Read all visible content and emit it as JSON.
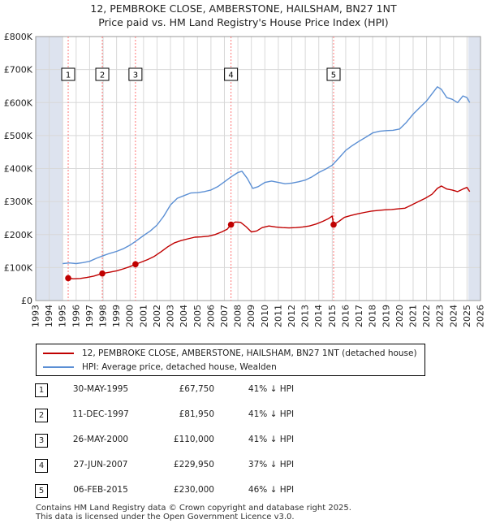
{
  "title": {
    "line1": "12, PEMBROKE CLOSE, AMBERSTONE, HAILSHAM, BN27 1NT",
    "line2": "Price paid vs. HM Land Registry's House Price Index (HPI)"
  },
  "colors": {
    "property": "#c00000",
    "hpi": "#5b8fd4",
    "shade": "#dde3ef",
    "grid": "#d8d8d8",
    "vline": "#ff7777"
  },
  "chart_data": {
    "type": "line",
    "title": "Price paid vs. HM Land Registry's House Price Index (HPI)",
    "xlabel": "",
    "ylabel": "",
    "xlim": [
      1993,
      2026
    ],
    "ylim": [
      0,
      800000
    ],
    "x_ticks": [
      1993,
      1994,
      1995,
      1996,
      1997,
      1998,
      1999,
      2000,
      2001,
      2002,
      2003,
      2004,
      2005,
      2006,
      2007,
      2008,
      2009,
      2010,
      2011,
      2012,
      2013,
      2014,
      2015,
      2016,
      2017,
      2018,
      2019,
      2020,
      2021,
      2022,
      2023,
      2024,
      2025,
      2026
    ],
    "y_ticks": [
      {
        "value": 0,
        "label": "£0"
      },
      {
        "value": 100000,
        "label": "£100K"
      },
      {
        "value": 200000,
        "label": "£200K"
      },
      {
        "value": 300000,
        "label": "£300K"
      },
      {
        "value": 400000,
        "label": "£400K"
      },
      {
        "value": 500000,
        "label": "£500K"
      },
      {
        "value": 600000,
        "label": "£600K"
      },
      {
        "value": 700000,
        "label": "£700K"
      },
      {
        "value": 800000,
        "label": "£800K"
      }
    ],
    "grid": true,
    "shaded_ranges": [
      [
        1993,
        1995.0
      ],
      [
        2025.1,
        2026
      ]
    ],
    "series": [
      {
        "name": "12, PEMBROKE CLOSE, AMBERSTONE, HAILSHAM, BN27 1NT (detached house)",
        "color_key": "property",
        "points": [
          [
            1995.41,
            67750
          ],
          [
            1995.8,
            66000
          ],
          [
            1996.3,
            67000
          ],
          [
            1996.8,
            70000
          ],
          [
            1997.3,
            74000
          ],
          [
            1997.94,
            81950
          ],
          [
            1998.5,
            86000
          ],
          [
            1999.0,
            90000
          ],
          [
            1999.5,
            96000
          ],
          [
            2000.0,
            103000
          ],
          [
            2000.4,
            110000
          ],
          [
            2000.8,
            116000
          ],
          [
            2001.3,
            124000
          ],
          [
            2001.8,
            134000
          ],
          [
            2002.3,
            148000
          ],
          [
            2002.8,
            163000
          ],
          [
            2003.3,
            175000
          ],
          [
            2003.8,
            182000
          ],
          [
            2004.3,
            187000
          ],
          [
            2004.8,
            192000
          ],
          [
            2005.3,
            193000
          ],
          [
            2005.8,
            195000
          ],
          [
            2006.3,
            200000
          ],
          [
            2006.8,
            208000
          ],
          [
            2007.2,
            216000
          ],
          [
            2007.49,
            229950
          ],
          [
            2007.8,
            238000
          ],
          [
            2008.2,
            237000
          ],
          [
            2008.6,
            224000
          ],
          [
            2009.0,
            208000
          ],
          [
            2009.4,
            211000
          ],
          [
            2009.8,
            221000
          ],
          [
            2010.3,
            226000
          ],
          [
            2010.8,
            223000
          ],
          [
            2011.3,
            221000
          ],
          [
            2011.8,
            220000
          ],
          [
            2012.3,
            221000
          ],
          [
            2012.8,
            223000
          ],
          [
            2013.3,
            226000
          ],
          [
            2013.8,
            232000
          ],
          [
            2014.3,
            240000
          ],
          [
            2014.7,
            248000
          ],
          [
            2015.0,
            256000
          ],
          [
            2015.1,
            230000
          ],
          [
            2015.5,
            240000
          ],
          [
            2015.9,
            252000
          ],
          [
            2016.4,
            258000
          ],
          [
            2016.9,
            263000
          ],
          [
            2017.4,
            267000
          ],
          [
            2017.9,
            271000
          ],
          [
            2018.4,
            273000
          ],
          [
            2018.9,
            275000
          ],
          [
            2019.4,
            276000
          ],
          [
            2019.9,
            278000
          ],
          [
            2020.4,
            280000
          ],
          [
            2020.9,
            290000
          ],
          [
            2021.4,
            300000
          ],
          [
            2021.9,
            310000
          ],
          [
            2022.4,
            322000
          ],
          [
            2022.8,
            340000
          ],
          [
            2023.1,
            347000
          ],
          [
            2023.5,
            338000
          ],
          [
            2023.9,
            335000
          ],
          [
            2024.3,
            330000
          ],
          [
            2024.7,
            338000
          ],
          [
            2025.0,
            343000
          ],
          [
            2025.2,
            330000
          ]
        ]
      },
      {
        "name": "HPI: Average price, detached house, Wealden",
        "color_key": "hpi",
        "points": [
          [
            1995.0,
            112000
          ],
          [
            1995.5,
            114000
          ],
          [
            1996.0,
            112000
          ],
          [
            1996.5,
            115000
          ],
          [
            1997.0,
            119000
          ],
          [
            1997.5,
            128000
          ],
          [
            1998.0,
            136000
          ],
          [
            1998.5,
            143000
          ],
          [
            1999.0,
            149000
          ],
          [
            1999.5,
            157000
          ],
          [
            2000.0,
            168000
          ],
          [
            2000.5,
            182000
          ],
          [
            2001.0,
            197000
          ],
          [
            2001.5,
            211000
          ],
          [
            2002.0,
            229000
          ],
          [
            2002.5,
            256000
          ],
          [
            2003.0,
            290000
          ],
          [
            2003.5,
            310000
          ],
          [
            2004.0,
            318000
          ],
          [
            2004.5,
            326000
          ],
          [
            2005.0,
            327000
          ],
          [
            2005.5,
            330000
          ],
          [
            2006.0,
            335000
          ],
          [
            2006.5,
            345000
          ],
          [
            2007.0,
            360000
          ],
          [
            2007.5,
            375000
          ],
          [
            2008.0,
            388000
          ],
          [
            2008.3,
            392000
          ],
          [
            2008.7,
            370000
          ],
          [
            2009.1,
            340000
          ],
          [
            2009.5,
            345000
          ],
          [
            2010.0,
            358000
          ],
          [
            2010.5,
            362000
          ],
          [
            2011.0,
            358000
          ],
          [
            2011.5,
            354000
          ],
          [
            2012.0,
            356000
          ],
          [
            2012.5,
            360000
          ],
          [
            2013.0,
            365000
          ],
          [
            2013.5,
            375000
          ],
          [
            2014.0,
            388000
          ],
          [
            2014.5,
            398000
          ],
          [
            2015.0,
            410000
          ],
          [
            2015.5,
            432000
          ],
          [
            2016.0,
            455000
          ],
          [
            2016.5,
            470000
          ],
          [
            2017.0,
            483000
          ],
          [
            2017.5,
            495000
          ],
          [
            2018.0,
            508000
          ],
          [
            2018.5,
            513000
          ],
          [
            2019.0,
            515000
          ],
          [
            2019.5,
            516000
          ],
          [
            2020.0,
            520000
          ],
          [
            2020.5,
            540000
          ],
          [
            2021.0,
            565000
          ],
          [
            2021.5,
            585000
          ],
          [
            2022.0,
            605000
          ],
          [
            2022.5,
            632000
          ],
          [
            2022.8,
            648000
          ],
          [
            2023.1,
            640000
          ],
          [
            2023.5,
            615000
          ],
          [
            2023.9,
            610000
          ],
          [
            2024.3,
            600000
          ],
          [
            2024.7,
            620000
          ],
          [
            2025.0,
            615000
          ],
          [
            2025.2,
            600000
          ]
        ]
      }
    ],
    "annotations": [
      {
        "label": "1",
        "x": 1995.41,
        "y": 67750
      },
      {
        "label": "2",
        "x": 1997.94,
        "y": 81950
      },
      {
        "label": "3",
        "x": 2000.4,
        "y": 110000
      },
      {
        "label": "4",
        "x": 2007.49,
        "y": 229950
      },
      {
        "label": "5",
        "x": 2015.1,
        "y": 230000
      }
    ]
  },
  "legend": {
    "property_label": "12, PEMBROKE CLOSE, AMBERSTONE, HAILSHAM, BN27 1NT (detached house)",
    "hpi_label": "HPI: Average price, detached house, Wealden"
  },
  "sales": [
    {
      "num": "1",
      "date": "30-MAY-1995",
      "price": "£67,750",
      "hpi": "41% ↓ HPI"
    },
    {
      "num": "2",
      "date": "11-DEC-1997",
      "price": "£81,950",
      "hpi": "41% ↓ HPI"
    },
    {
      "num": "3",
      "date": "26-MAY-2000",
      "price": "£110,000",
      "hpi": "41% ↓ HPI"
    },
    {
      "num": "4",
      "date": "27-JUN-2007",
      "price": "£229,950",
      "hpi": "37% ↓ HPI"
    },
    {
      "num": "5",
      "date": "06-FEB-2015",
      "price": "£230,000",
      "hpi": "46% ↓ HPI"
    }
  ],
  "footer": {
    "line1": "Contains HM Land Registry data © Crown copyright and database right 2025.",
    "line2": "This data is licensed under the Open Government Licence v3.0."
  }
}
